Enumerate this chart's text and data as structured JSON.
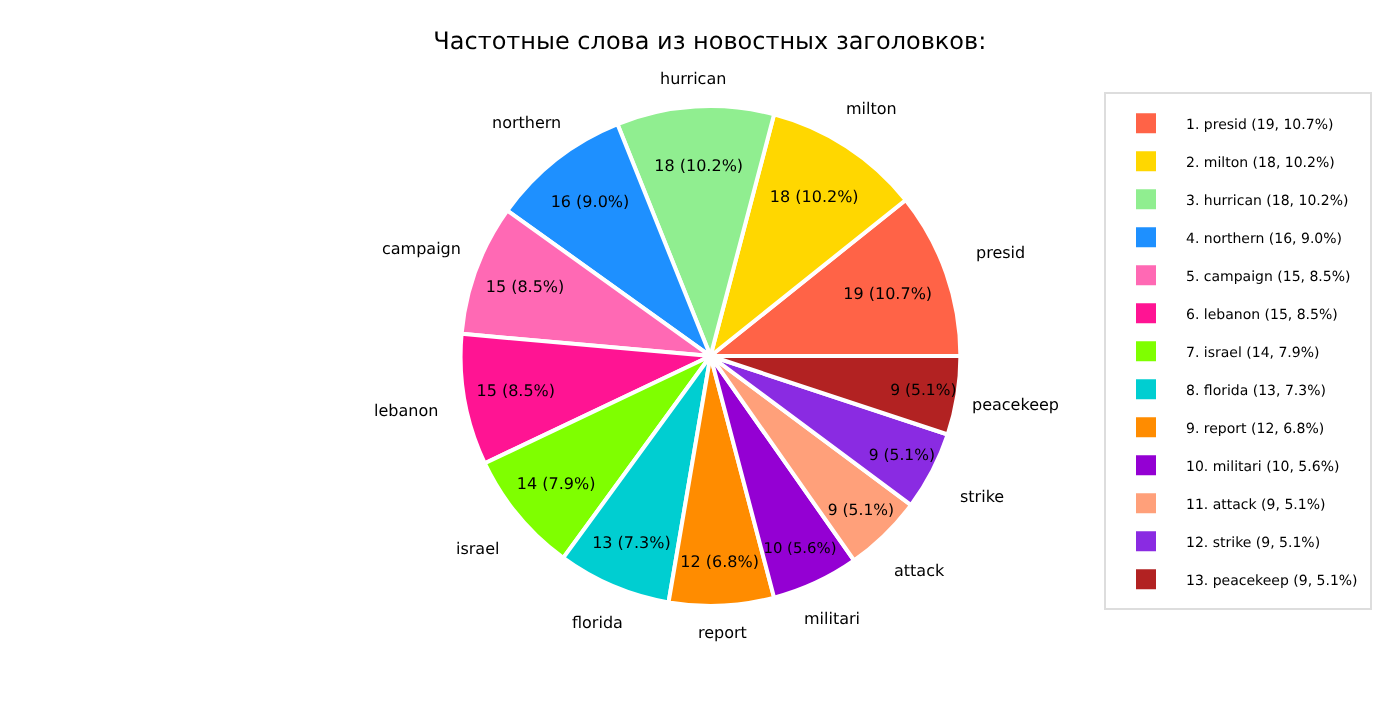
{
  "chart_data": {
    "type": "pie",
    "title": "Частотные слова из новостных заголовков:",
    "categories": [
      "1. presid (19, 10.7%)",
      "2. milton (18, 10.2%)",
      "3. hurrican (18, 10.2%)",
      "4. northern (16, 9.0%)",
      "5. campaign (15, 8.5%)",
      "6. lebanon (15, 8.5%)",
      "7. israel (14, 7.9%)",
      "8. florida (13, 7.3%)",
      "9. report (12, 6.8%)",
      "10. militari (10, 5.6%)",
      "11. attack (9, 5.1%)",
      "12. strike (9, 5.1%)",
      "13. peacekeep (9, 5.1%)"
    ],
    "annotations": [
      "presid",
      "milton",
      "hurrican",
      "northern",
      "campaign",
      "lebanon",
      "israel",
      "florida",
      "report",
      "militari",
      "attack",
      "strike",
      "peacekeep"
    ],
    "values": [
      19,
      18,
      18,
      16,
      15,
      15,
      14,
      13,
      12,
      10,
      9,
      9,
      9
    ],
    "value_labels": [
      "19 (10.7%)",
      "18 (10.2%)",
      "18 (10.2%)",
      "16 (9.0%)",
      "15 (8.5%)",
      "15 (8.5%)",
      "14 (7.9%)",
      "13 (7.3%)",
      "12 (6.8%)",
      "10 (5.6%)",
      "9 (5.1%)",
      "9 (5.1%)",
      "9 (5.1%)"
    ],
    "colors": [
      "#ff6347",
      "#ffd700",
      "#90ee90",
      "#1e90ff",
      "#ff69b4",
      "#ff1493",
      "#7fff00",
      "#00ced1",
      "#ff8c00",
      "#9400d3",
      "#ffa07a",
      "#8a2be2",
      "#b22222"
    ],
    "legend": "top right"
  }
}
